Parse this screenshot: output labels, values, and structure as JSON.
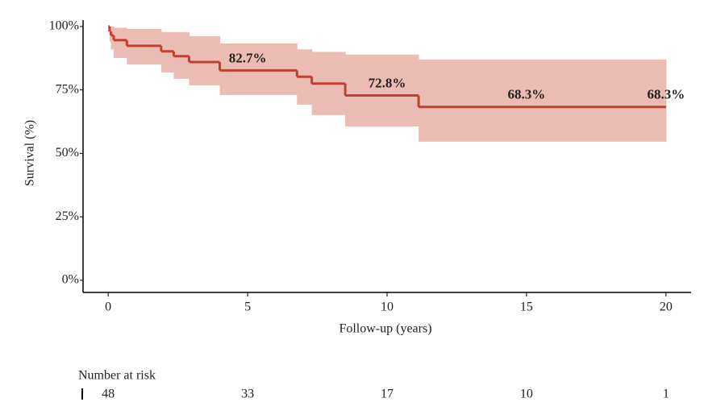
{
  "chart_data": {
    "type": "step",
    "ylabel": "Survival (%)",
    "xlabel": "Follow-up (years)",
    "xlim": [
      -0.9,
      20.9
    ],
    "xticks": [
      0,
      5,
      10,
      15,
      20
    ],
    "ylim": [
      -4.8,
      102.5
    ],
    "yticks": [
      {
        "value": 0,
        "label": "0%"
      },
      {
        "value": 25,
        "label": "25%"
      },
      {
        "value": 50,
        "label": "50%"
      },
      {
        "value": 75,
        "label": "75%"
      },
      {
        "value": 100,
        "label": "100%"
      }
    ],
    "color": "#c0402e",
    "band_color": "#ebbcb3",
    "time": [
      0,
      0.05,
      0.1,
      0.2,
      0.67,
      1.9,
      2.35,
      2.9,
      4.0,
      6.77,
      7.3,
      8.5,
      11.13,
      20
    ],
    "survival": [
      100,
      98,
      96.5,
      94.6,
      92.4,
      90.2,
      88.3,
      86,
      82.7,
      80.2,
      77.5,
      72.8,
      68.3,
      68.3
    ],
    "upper": [
      100,
      100,
      100,
      99.5,
      99,
      97.8,
      97.8,
      96.2,
      93.3,
      91,
      90,
      88.9,
      87,
      87
    ],
    "lower": [
      100,
      94,
      91,
      87.6,
      85,
      81.9,
      79.4,
      76.8,
      73,
      69.2,
      65.1,
      60.6,
      54.6,
      54.6
    ],
    "annotations": {
      "x": [
        5,
        10,
        15,
        20
      ],
      "values": [
        82.7,
        72.8,
        68.3,
        68.3
      ],
      "value_labels": [
        "82.7%",
        "72.8%",
        "68.3%",
        "68.3%"
      ]
    },
    "risk_table": {
      "title": "Number at risk",
      "x": [
        0,
        5,
        10,
        15,
        20
      ],
      "values": [
        48,
        33,
        17,
        10,
        1
      ]
    }
  }
}
